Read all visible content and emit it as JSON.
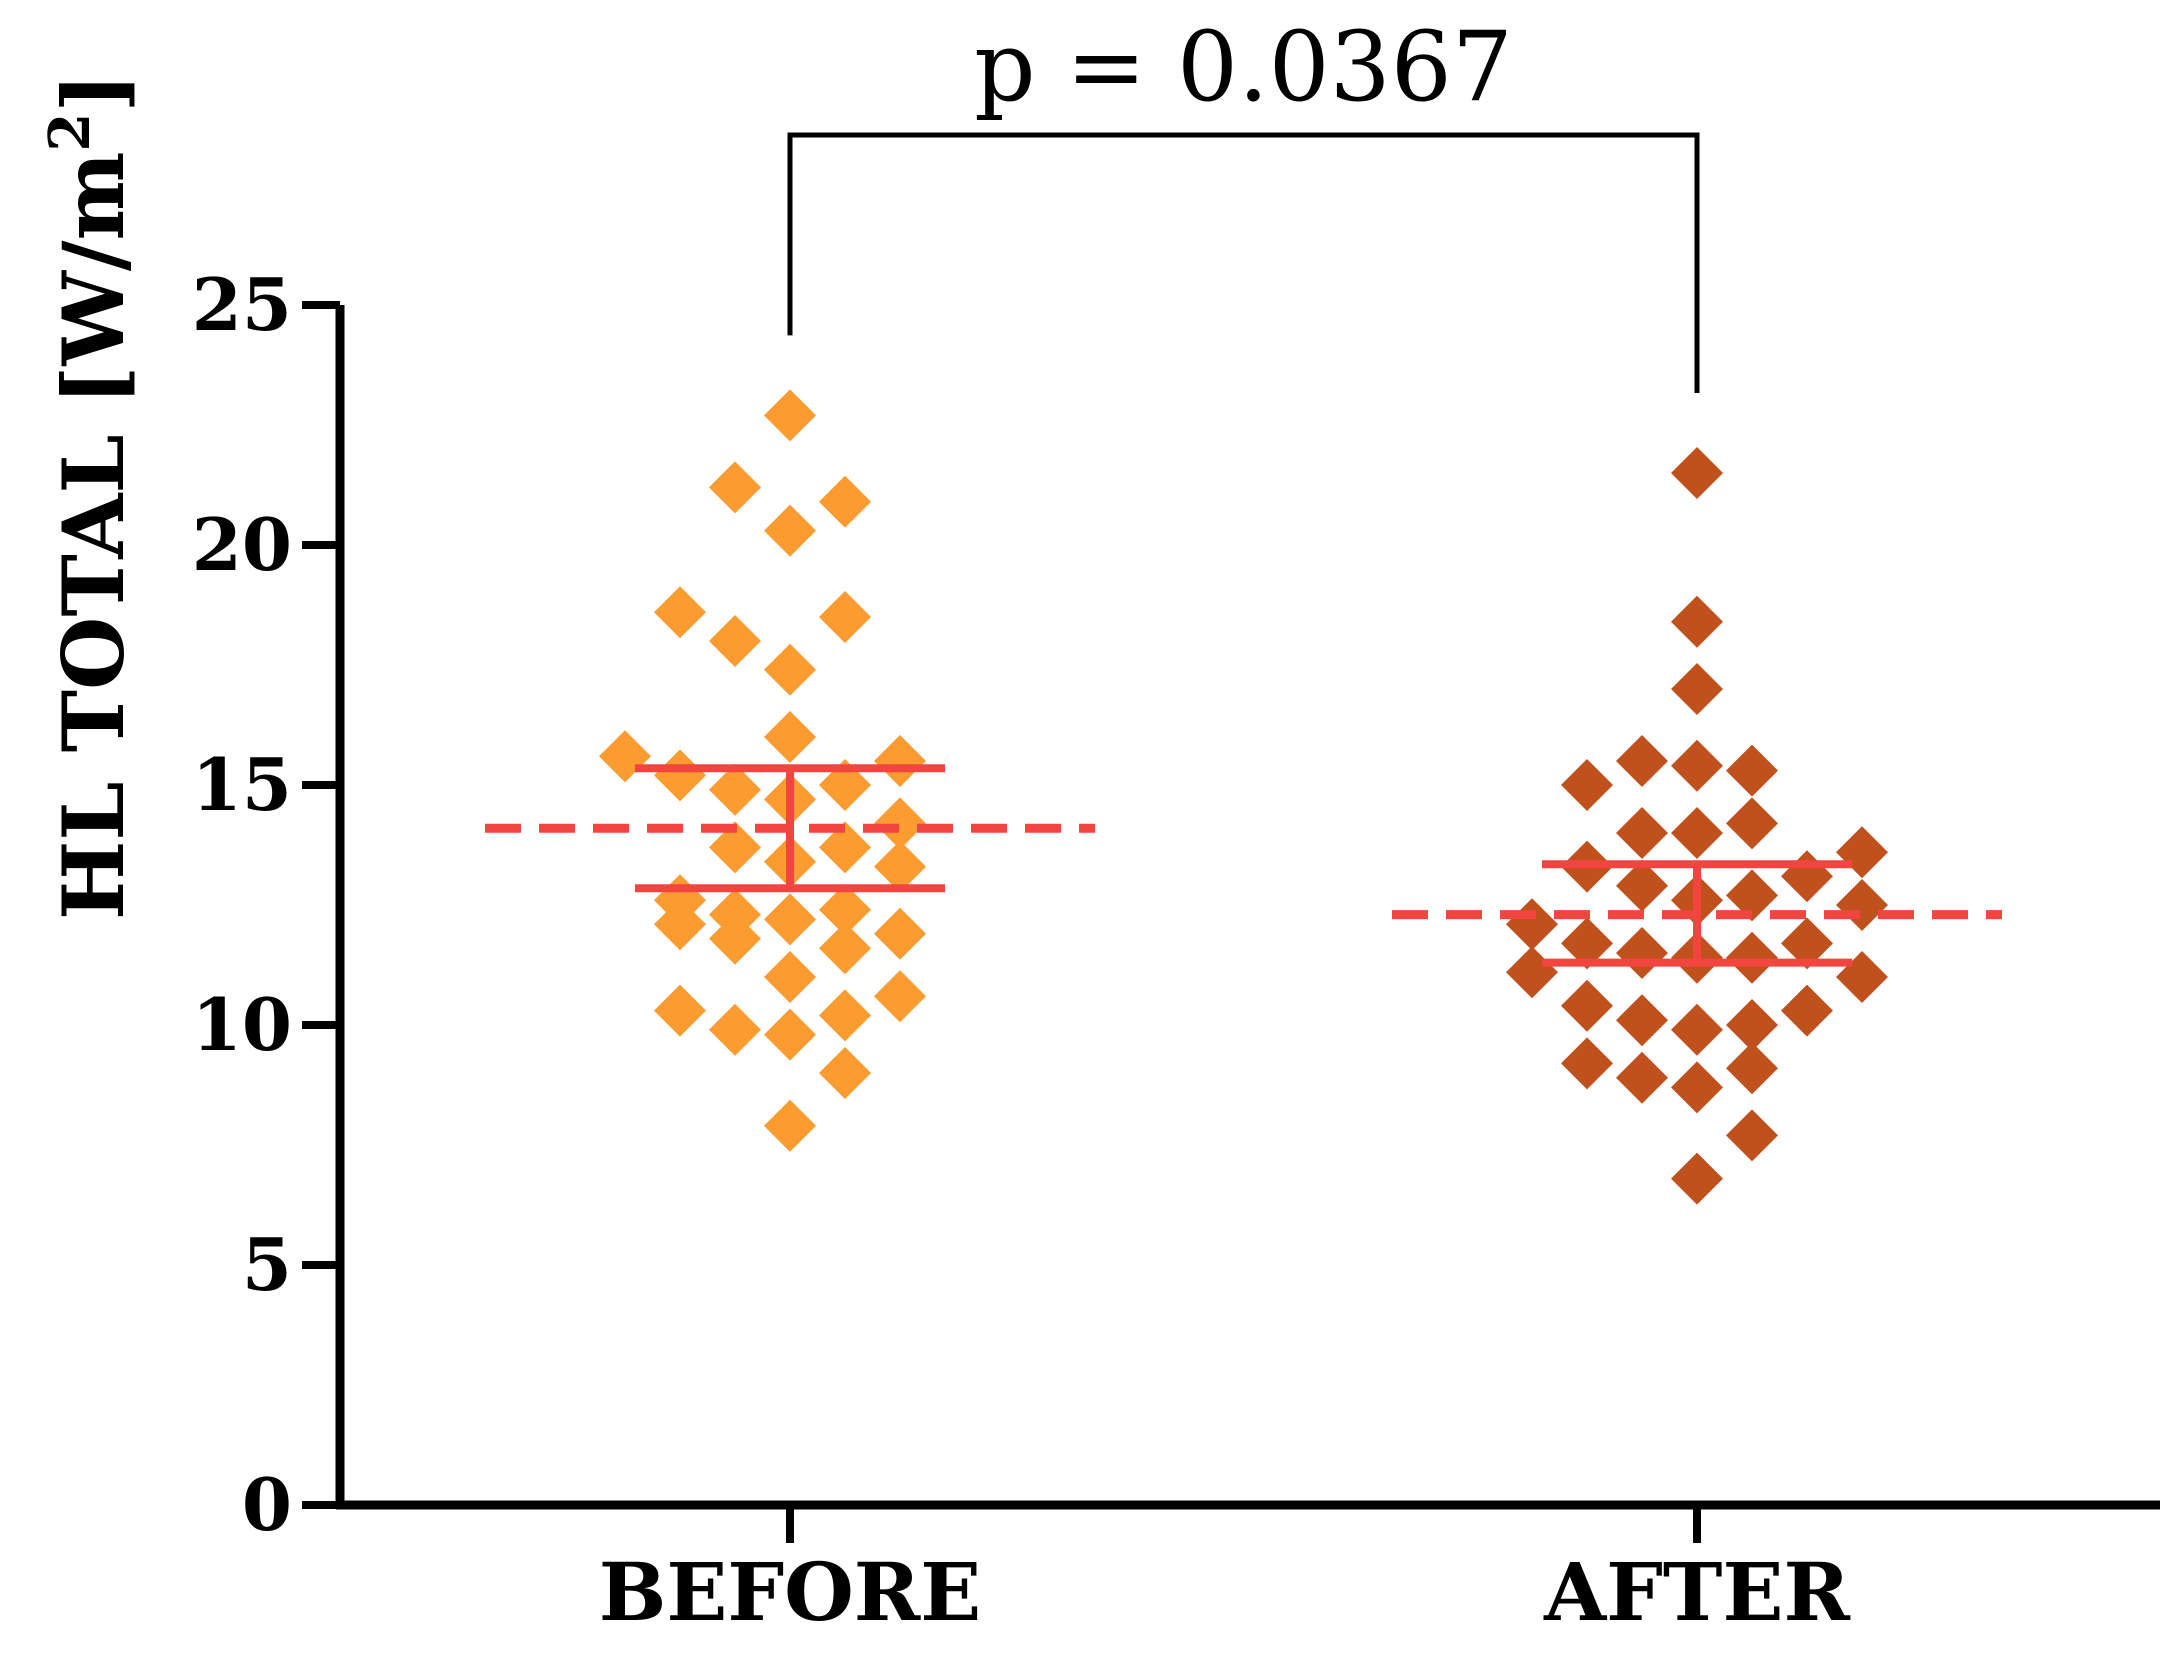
{
  "chart_data": {
    "type": "scatter",
    "ylabel": "HL TOTAL [W/m",
    "ylabel_superscript": "2",
    "ylabel_close": "]",
    "ylim": [
      0,
      25
    ],
    "yticks": [
      0,
      5,
      10,
      15,
      20,
      25
    ],
    "categories": [
      "BEFORE",
      "AFTER"
    ],
    "annotation": "p = 0.0367",
    "colors": {
      "BEFORE": "#FB9B30",
      "AFTER": "#C0501C",
      "summary": "#F2453F",
      "axis": "#000000"
    },
    "series": [
      {
        "category": "BEFORE",
        "values": [
          22.7,
          21.2,
          20.9,
          20.3,
          18.6,
          18.5,
          18.0,
          17.4,
          16.0,
          15.6,
          15.5,
          15.2,
          15.0,
          14.9,
          14.7,
          14.2,
          13.7,
          13.7,
          13.4,
          13.3,
          12.6,
          12.4,
          12.3,
          12.2,
          12.1,
          11.9,
          11.8,
          11.6,
          11.0,
          10.6,
          10.3,
          10.2,
          9.9,
          9.8,
          9.0,
          7.9
        ],
        "offsets": [
          0,
          -1,
          1,
          0,
          -2,
          1,
          -1,
          0,
          0,
          -3,
          2,
          -2,
          1,
          -1,
          0,
          2,
          -1,
          1,
          0,
          2,
          -2,
          1,
          -1,
          0,
          -2,
          2,
          -1,
          1,
          0,
          2,
          -2,
          1,
          -1,
          0,
          1,
          0
        ],
        "mean": 14.1,
        "sem_upper": 15.35,
        "sem_lower": 12.85
      },
      {
        "category": "AFTER",
        "values": [
          21.5,
          18.4,
          17.0,
          15.5,
          15.4,
          15.3,
          15.0,
          14.2,
          14.0,
          14.0,
          13.6,
          13.3,
          13.1,
          12.9,
          12.7,
          12.6,
          12.5,
          12.1,
          11.7,
          11.7,
          11.5,
          11.4,
          11.4,
          11.1,
          11.0,
          10.4,
          10.3,
          10.1,
          10.0,
          9.9,
          9.2,
          9.1,
          8.9,
          8.7,
          7.7,
          6.8
        ],
        "offsets": [
          0,
          0,
          0,
          -1,
          0,
          1,
          -2,
          1,
          -1,
          0,
          3,
          -2,
          2,
          -1,
          1,
          0,
          3,
          -3,
          -2,
          2,
          -1,
          1,
          0,
          -3,
          3,
          -2,
          2,
          -1,
          1,
          0,
          -2,
          1,
          -1,
          0,
          1,
          0
        ],
        "mean": 12.3,
        "sem_upper": 13.35,
        "sem_lower": 11.3
      }
    ]
  }
}
